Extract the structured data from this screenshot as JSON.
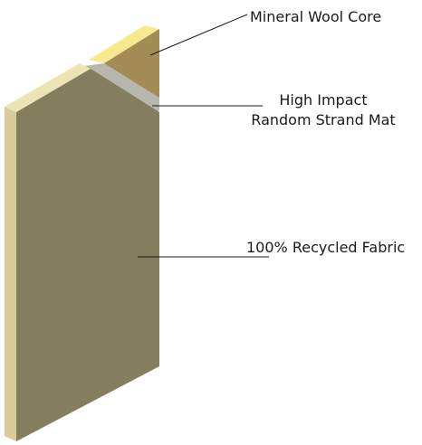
{
  "labels": {
    "core": "Mineral Wool Core",
    "mat_line1": "High Impact",
    "mat_line2": "Random Strand Mat",
    "fabric": "100% Recycled Fabric"
  },
  "colors": {
    "core_top": "#f7e98e",
    "core_face": "#a38d55",
    "mat_top": "#e6e0a8",
    "mat_band": "#b7b7b0",
    "fabric_face": "#857e5e",
    "fabric_edge": "#d7cc9a",
    "fabric_top": "#ede4b4",
    "leader": "#1a1a1a"
  }
}
